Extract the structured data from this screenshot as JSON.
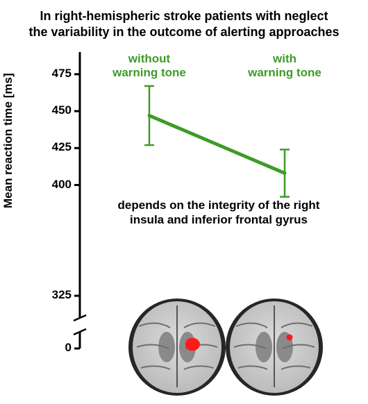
{
  "title_line1": "In right-hemispheric stroke patients with neglect",
  "title_line2": "the variability in the outcome of alerting approaches",
  "title_fontsize": 18,
  "chart": {
    "type": "line",
    "ylabel": "Mean reaction time [ms]",
    "ylabel_fontsize": 17,
    "ylim": [
      0,
      490
    ],
    "break_low": 0,
    "break_high": 310,
    "yticks": [
      0,
      325,
      400,
      425,
      450,
      475
    ],
    "tick_fontsize": 17,
    "conditions": [
      {
        "label_line1": "without",
        "label_line2": "warning tone",
        "value": 447,
        "err": 20
      },
      {
        "label_line1": "with",
        "label_line2": "warning tone",
        "value": 408,
        "err": 16
      }
    ],
    "cond_label_fontsize": 17,
    "cond_label_color": "#3f9b28",
    "line_color": "#3f9b28",
    "line_width": 5,
    "err_cap_width": 14,
    "err_line_width": 2.5,
    "axis_color": "#000000",
    "axis_width": 3,
    "tick_len": 8,
    "background_color": "#ffffff"
  },
  "midtext_line1": "depends on the integrity of the right",
  "midtext_line2": "insula and inferior frontal gyrus",
  "midtext_fontsize": 17,
  "brain_images": {
    "count": 2,
    "diameter": 140,
    "highlight_color": "#ff1a1a",
    "bg_color": "#262626",
    "tissue_color": "#b8b8b8",
    "tissue_light": "#dcdcdc"
  }
}
